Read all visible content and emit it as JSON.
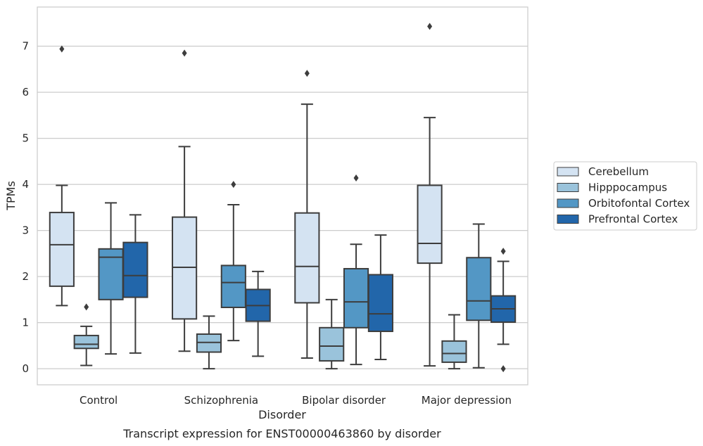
{
  "caption": "Transcript expression for ENST00000463860 by disorder",
  "chart_data": {
    "type": "box",
    "xlabel": "Disorder",
    "ylabel": "TPMs",
    "ylim": [
      -0.35,
      7.85
    ],
    "yticks": [
      0,
      1,
      2,
      3,
      4,
      5,
      6,
      7
    ],
    "grid": "horizontal",
    "legend_position": "right",
    "categories": [
      "Control",
      "Schizophrenia",
      "Bipolar disorder",
      "Major depression"
    ],
    "series": [
      {
        "name": "Cerebellum",
        "color": "#d4e3f2",
        "boxes": [
          {
            "wlo": 1.37,
            "q1": 1.79,
            "median": 2.69,
            "q3": 3.39,
            "whi": 3.98,
            "outliers": [
              6.94
            ]
          },
          {
            "wlo": 0.38,
            "q1": 1.08,
            "median": 2.2,
            "q3": 3.29,
            "whi": 4.82,
            "outliers": [
              6.85
            ]
          },
          {
            "wlo": 0.23,
            "q1": 1.43,
            "median": 2.22,
            "q3": 3.38,
            "whi": 5.74,
            "outliers": [
              6.41
            ]
          },
          {
            "wlo": 0.06,
            "q1": 2.29,
            "median": 2.72,
            "q3": 3.98,
            "whi": 5.45,
            "outliers": [
              7.43
            ]
          }
        ]
      },
      {
        "name": "Hipppocampus",
        "color": "#9ac3db",
        "boxes": [
          {
            "wlo": 0.07,
            "q1": 0.44,
            "median": 0.53,
            "q3": 0.72,
            "whi": 0.92,
            "outliers": [
              1.34
            ]
          },
          {
            "wlo": 0.0,
            "q1": 0.36,
            "median": 0.57,
            "q3": 0.75,
            "whi": 1.14,
            "outliers": []
          },
          {
            "wlo": 0.0,
            "q1": 0.17,
            "median": 0.49,
            "q3": 0.89,
            "whi": 1.5,
            "outliers": []
          },
          {
            "wlo": 0.0,
            "q1": 0.14,
            "median": 0.33,
            "q3": 0.6,
            "whi": 1.17,
            "outliers": []
          }
        ]
      },
      {
        "name": "Orbitofontal Cortex",
        "color": "#5397c5",
        "boxes": [
          {
            "wlo": 0.32,
            "q1": 1.5,
            "median": 2.42,
            "q3": 2.6,
            "whi": 3.6,
            "outliers": []
          },
          {
            "wlo": 0.61,
            "q1": 1.33,
            "median": 1.87,
            "q3": 2.24,
            "whi": 3.56,
            "outliers": [
              4.0
            ]
          },
          {
            "wlo": 0.09,
            "q1": 0.89,
            "median": 1.45,
            "q3": 2.17,
            "whi": 2.7,
            "outliers": [
              4.14
            ]
          },
          {
            "wlo": 0.02,
            "q1": 1.05,
            "median": 1.47,
            "q3": 2.41,
            "whi": 3.14,
            "outliers": []
          }
        ]
      },
      {
        "name": "Prefrontal Cortex",
        "color": "#2266aa",
        "boxes": [
          {
            "wlo": 0.34,
            "q1": 1.55,
            "median": 2.02,
            "q3": 2.74,
            "whi": 3.34,
            "outliers": []
          },
          {
            "wlo": 0.27,
            "q1": 1.03,
            "median": 1.37,
            "q3": 1.72,
            "whi": 2.11,
            "outliers": []
          },
          {
            "wlo": 0.2,
            "q1": 0.81,
            "median": 1.19,
            "q3": 2.04,
            "whi": 2.9,
            "outliers": []
          },
          {
            "wlo": 0.53,
            "q1": 1.01,
            "median": 1.3,
            "q3": 1.58,
            "whi": 2.33,
            "outliers": [
              2.55,
              0.0
            ]
          }
        ]
      }
    ]
  }
}
